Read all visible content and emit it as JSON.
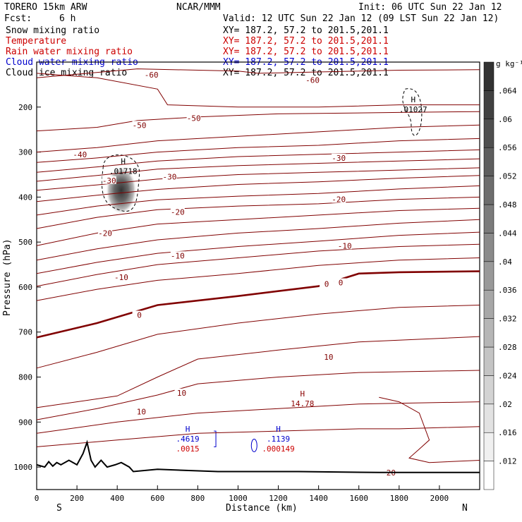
{
  "header": {
    "model": "TORERO  15km ARW",
    "org": "NCAR/MMM",
    "init": "Init: 06 UTC Sun 22 Jan 12",
    "fcst_label": "Fcst:",
    "fcst_value": "6 h",
    "valid": "Valid: 12 UTC Sun 22 Jan 12 (09 LST Sun 22 Jan 12)"
  },
  "fields": [
    {
      "name": "Snow mixing ratio",
      "xy": "XY= 187.2, 57.2 to 201.5,201.1",
      "color": "#000000"
    },
    {
      "name": "Temperature",
      "xy": "XY= 187.2, 57.2 to 201.5,201.1",
      "color": "#cc0000"
    },
    {
      "name": "Rain water mixing ratio",
      "xy": "XY= 187.2, 57.2 to 201.5,201.1",
      "color": "#cc0000"
    },
    {
      "name": "Cloud water mixing ratio",
      "xy": "XY= 187.2, 57.2 to 201.5,201.1",
      "color": "#0000cc"
    },
    {
      "name": "Cloud ice mixing ratio",
      "xy": "XY= 187.2, 57.2 to 201.5,201.1",
      "color": "#000000"
    }
  ],
  "chart_data": {
    "type": "contour cross-section",
    "xlabel": "Distance (km)",
    "ylabel": "Pressure (hPa)",
    "xlim": [
      0,
      2200
    ],
    "ylim": [
      1050,
      100
    ],
    "x_ticks": [
      0,
      200,
      400,
      600,
      800,
      1000,
      1200,
      1400,
      1600,
      1800,
      2000
    ],
    "y_ticks": [
      200,
      300,
      400,
      500,
      600,
      700,
      800,
      900,
      1000
    ],
    "x_end_labels": {
      "left": "S",
      "right": "N"
    },
    "colorbar": {
      "unit": "g kg⁻¹",
      "levels": [
        ".012",
        ".016",
        ".02",
        ".024",
        ".028",
        ".032",
        ".036",
        ".04",
        ".044",
        ".048",
        ".052",
        ".056",
        ".06",
        ".064"
      ]
    },
    "temperature_contours": [
      {
        "temp": -60,
        "points": [
          [
            0,
            125
          ],
          [
            300,
            135
          ],
          [
            600,
            160
          ],
          [
            650,
            195
          ],
          [
            1000,
            200
          ],
          [
            1400,
            200
          ],
          [
            1800,
            195
          ],
          [
            2200,
            195
          ]
        ]
      },
      {
        "temp": -60,
        "points": [
          [
            0,
            135
          ],
          [
            500,
            115
          ],
          [
            1000,
            120
          ],
          [
            1100,
            125
          ],
          [
            1400,
            122
          ],
          [
            1800,
            118
          ],
          [
            2200,
            117
          ]
        ]
      },
      {
        "temp": -50,
        "points": [
          [
            0,
            253
          ],
          [
            300,
            245
          ],
          [
            500,
            230
          ],
          [
            800,
            222
          ],
          [
            1200,
            215
          ],
          [
            1800,
            212
          ],
          [
            2200,
            210
          ]
        ]
      },
      {
        "temp": -40,
        "points": [
          [
            0,
            300
          ],
          [
            300,
            290
          ],
          [
            600,
            275
          ],
          [
            1000,
            265
          ],
          [
            1400,
            255
          ],
          [
            1800,
            245
          ],
          [
            2200,
            240
          ]
        ]
      },
      {
        "temp": -40,
        "points": [
          [
            0,
            323
          ],
          [
            300,
            313
          ],
          [
            600,
            300
          ],
          [
            1000,
            290
          ],
          [
            1400,
            285
          ],
          [
            1800,
            275
          ],
          [
            2200,
            270
          ]
        ]
      },
      {
        "temp": -30,
        "points": [
          [
            0,
            345
          ],
          [
            300,
            333
          ],
          [
            600,
            320
          ],
          [
            1000,
            310
          ],
          [
            1400,
            305
          ],
          [
            1800,
            300
          ],
          [
            2200,
            295
          ]
        ]
      },
      {
        "temp": -30,
        "points": [
          [
            0,
            365
          ],
          [
            300,
            352
          ],
          [
            600,
            338
          ],
          [
            1000,
            330
          ],
          [
            1400,
            325
          ],
          [
            1800,
            320
          ],
          [
            2200,
            315
          ]
        ]
      },
      {
        "temp": -30,
        "points": [
          [
            0,
            385
          ],
          [
            300,
            373
          ],
          [
            600,
            360
          ],
          [
            1000,
            350
          ],
          [
            1400,
            345
          ],
          [
            1800,
            340
          ],
          [
            2200,
            335
          ]
        ]
      },
      {
        "temp": -20,
        "points": [
          [
            0,
            410
          ],
          [
            300,
            396
          ],
          [
            600,
            383
          ],
          [
            1000,
            372
          ],
          [
            1400,
            366
          ],
          [
            1800,
            358
          ],
          [
            2200,
            352
          ]
        ]
      },
      {
        "temp": -20,
        "points": [
          [
            0,
            440
          ],
          [
            300,
            420
          ],
          [
            600,
            406
          ],
          [
            1000,
            398
          ],
          [
            1400,
            392
          ],
          [
            1800,
            382
          ],
          [
            2200,
            375
          ]
        ]
      },
      {
        "temp": -20,
        "points": [
          [
            0,
            470
          ],
          [
            300,
            445
          ],
          [
            600,
            428
          ],
          [
            1000,
            420
          ],
          [
            1400,
            415
          ],
          [
            1800,
            405
          ],
          [
            2200,
            400
          ]
        ]
      },
      {
        "temp": -10,
        "points": [
          [
            0,
            508
          ],
          [
            300,
            480
          ],
          [
            600,
            460
          ],
          [
            1000,
            450
          ],
          [
            1400,
            440
          ],
          [
            1800,
            430
          ],
          [
            2200,
            425
          ]
        ]
      },
      {
        "temp": -10,
        "points": [
          [
            0,
            540
          ],
          [
            300,
            515
          ],
          [
            600,
            495
          ],
          [
            1000,
            480
          ],
          [
            1400,
            470
          ],
          [
            1800,
            458
          ],
          [
            2200,
            450
          ]
        ]
      },
      {
        "temp": -10,
        "points": [
          [
            0,
            570
          ],
          [
            300,
            545
          ],
          [
            600,
            525
          ],
          [
            1000,
            510
          ],
          [
            1400,
            498
          ],
          [
            1800,
            485
          ],
          [
            2200,
            478
          ]
        ]
      },
      {
        "temp": -10,
        "points": [
          [
            0,
            598
          ],
          [
            300,
            572
          ],
          [
            600,
            550
          ],
          [
            1000,
            535
          ],
          [
            1400,
            520
          ],
          [
            1800,
            510
          ],
          [
            2200,
            505
          ]
        ]
      },
      {
        "temp": 0,
        "points": [
          [
            0,
            630
          ],
          [
            300,
            605
          ],
          [
            600,
            585
          ],
          [
            1000,
            570
          ],
          [
            1400,
            552
          ],
          [
            1800,
            540
          ],
          [
            2200,
            535
          ]
        ]
      },
      {
        "temp": 0,
        "points": [
          [
            0,
            712
          ],
          [
            300,
            680
          ],
          [
            600,
            640
          ],
          [
            1000,
            620
          ],
          [
            1400,
            598
          ],
          [
            1600,
            570
          ],
          [
            1800,
            567
          ],
          [
            2200,
            565
          ]
        ]
      },
      {
        "temp": 0,
        "points": [
          [
            0,
            780
          ],
          [
            300,
            745
          ],
          [
            600,
            705
          ],
          [
            1000,
            680
          ],
          [
            1400,
            660
          ],
          [
            1800,
            645
          ],
          [
            2200,
            640
          ]
        ]
      },
      {
        "temp": 10,
        "points": [
          [
            0,
            868
          ],
          [
            400,
            842
          ],
          [
            600,
            800
          ],
          [
            800,
            760
          ],
          [
            1200,
            740
          ],
          [
            1600,
            722
          ],
          [
            2200,
            710
          ]
        ]
      },
      {
        "temp": 10,
        "points": [
          [
            0,
            895
          ],
          [
            300,
            870
          ],
          [
            600,
            840
          ],
          [
            800,
            815
          ],
          [
            1200,
            800
          ],
          [
            1600,
            790
          ],
          [
            2200,
            785
          ]
        ]
      },
      {
        "temp": 10,
        "points": [
          [
            0,
            925
          ],
          [
            400,
            900
          ],
          [
            800,
            880
          ],
          [
            1200,
            870
          ],
          [
            1600,
            860
          ],
          [
            2200,
            855
          ]
        ]
      },
      {
        "temp": 10,
        "points": [
          [
            0,
            955
          ],
          [
            400,
            940
          ],
          [
            800,
            925
          ],
          [
            1200,
            920
          ],
          [
            1600,
            915
          ],
          [
            1800,
            915
          ],
          [
            2200,
            910
          ]
        ]
      },
      {
        "temp": 20,
        "points": [
          [
            1700,
            845
          ],
          [
            1800,
            855
          ],
          [
            1900,
            880
          ],
          [
            1950,
            940
          ],
          [
            1900,
            960
          ],
          [
            1850,
            980
          ],
          [
            1950,
            990
          ],
          [
            2200,
            985
          ]
        ]
      }
    ],
    "contour_labels": [
      {
        "text": "-60",
        "x": 570,
        "y": 128
      },
      {
        "text": "-60",
        "x": 1370,
        "y": 140
      },
      {
        "text": "-50",
        "x": 510,
        "y": 240
      },
      {
        "text": "-50",
        "x": 780,
        "y": 225
      },
      {
        "text": "-40",
        "x": 215,
        "y": 305
      },
      {
        "text": "-30",
        "x": 360,
        "y": 363
      },
      {
        "text": "-30",
        "x": 660,
        "y": 355
      },
      {
        "text": "-30",
        "x": 1500,
        "y": 313
      },
      {
        "text": "-20",
        "x": 700,
        "y": 433
      },
      {
        "text": "-20",
        "x": 1500,
        "y": 405
      },
      {
        "text": "-20",
        "x": 340,
        "y": 480
      },
      {
        "text": "-10",
        "x": 700,
        "y": 530
      },
      {
        "text": "-10",
        "x": 1530,
        "y": 508
      },
      {
        "text": "-10",
        "x": 420,
        "y": 578
      },
      {
        "text": "0",
        "x": 1440,
        "y": 593
      },
      {
        "text": "0",
        "x": 1510,
        "y": 590
      },
      {
        "text": "0",
        "x": 510,
        "y": 662
      },
      {
        "text": "10",
        "x": 1450,
        "y": 755
      },
      {
        "text": "10",
        "x": 720,
        "y": 835
      },
      {
        "text": "10",
        "x": 520,
        "y": 877
      },
      {
        "text": "20",
        "x": 1760,
        "y": 1012
      }
    ],
    "maxima": [
      {
        "letter": "H",
        "value": ".01718",
        "x": 430,
        "y": 345,
        "color": "#000000"
      },
      {
        "letter": "H",
        "value": ".01027",
        "x": 1870,
        "y": 208,
        "color": "#000000"
      },
      {
        "letter": "H",
        "value": "14.78",
        "x": 1320,
        "y": 862,
        "color": "#8b0000"
      },
      {
        "letter": "H",
        "value": ".4619",
        "x": 750,
        "y": 940,
        "color": "#0000cc"
      },
      {
        "letter": "",
        "value": ".0015",
        "x": 750,
        "y": 962,
        "color": "#cc0000"
      },
      {
        "letter": "H",
        "value": ".1139",
        "x": 1200,
        "y": 940,
        "color": "#0000cc"
      },
      {
        "letter": "",
        "value": ".000149",
        "x": 1200,
        "y": 962,
        "color": "#cc0000"
      }
    ]
  }
}
